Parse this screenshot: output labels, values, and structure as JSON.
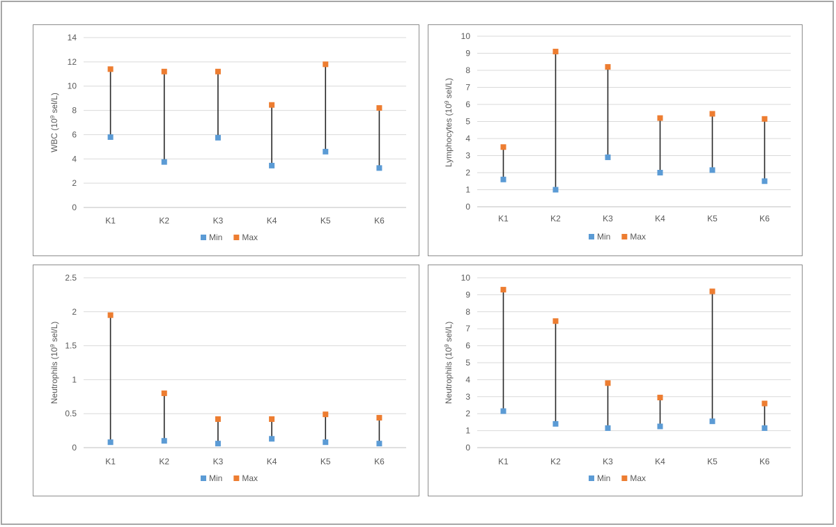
{
  "chart_data": [
    {
      "type": "scatter",
      "subtype": "min-max range",
      "ylabel": "WBC (10⁹ sel/L)",
      "ylim": [
        0,
        14
      ],
      "yticks": [
        0,
        2,
        4,
        6,
        8,
        10,
        12,
        14
      ],
      "categories": [
        "K1",
        "K2",
        "K3",
        "K4",
        "K5",
        "K6"
      ],
      "series": [
        {
          "name": "Min",
          "color": "#5b9bd5",
          "values": [
            5.8,
            3.75,
            5.75,
            3.45,
            4.6,
            3.25
          ]
        },
        {
          "name": "Max",
          "color": "#ed7d31",
          "values": [
            11.4,
            11.2,
            11.2,
            8.45,
            11.8,
            8.2
          ]
        }
      ],
      "legend": "bottom",
      "grid": true
    },
    {
      "type": "scatter",
      "subtype": "min-max range",
      "ylabel": "Lymphocytes (10⁹ sel/L)",
      "ylim": [
        0,
        10
      ],
      "yticks": [
        0,
        1,
        2,
        3,
        4,
        5,
        6,
        7,
        8,
        9,
        10
      ],
      "categories": [
        "K1",
        "K2",
        "K3",
        "K4",
        "K5",
        "K6"
      ],
      "series": [
        {
          "name": "Min",
          "color": "#5b9bd5",
          "values": [
            1.6,
            1.0,
            2.9,
            2.0,
            2.15,
            1.5
          ]
        },
        {
          "name": "Max",
          "color": "#ed7d31",
          "values": [
            3.5,
            9.1,
            8.2,
            5.2,
            5.45,
            5.15
          ]
        }
      ],
      "legend": "bottom",
      "grid": true
    },
    {
      "type": "scatter",
      "subtype": "min-max range",
      "ylabel": "Neutrophils (10⁹ sel/L)",
      "ylim": [
        0,
        2.5
      ],
      "yticks": [
        0,
        0.5,
        1,
        1.5,
        2,
        2.5
      ],
      "categories": [
        "K1",
        "K2",
        "K3",
        "K4",
        "K5",
        "K6"
      ],
      "series": [
        {
          "name": "Min",
          "color": "#5b9bd5",
          "values": [
            0.08,
            0.1,
            0.06,
            0.13,
            0.08,
            0.06
          ]
        },
        {
          "name": "Max",
          "color": "#ed7d31",
          "values": [
            1.95,
            0.8,
            0.42,
            0.42,
            0.49,
            0.44
          ]
        }
      ],
      "legend": "bottom",
      "grid": true
    },
    {
      "type": "scatter",
      "subtype": "min-max range",
      "ylabel": "Neutrophils (10⁹ sel/L)",
      "ylim": [
        0,
        10
      ],
      "yticks": [
        0,
        1,
        2,
        3,
        4,
        5,
        6,
        7,
        8,
        9,
        10
      ],
      "categories": [
        "K1",
        "K2",
        "K3",
        "K4",
        "K5",
        "K6"
      ],
      "series": [
        {
          "name": "Min",
          "color": "#5b9bd5",
          "values": [
            2.15,
            1.4,
            1.15,
            1.25,
            1.55,
            1.15
          ]
        },
        {
          "name": "Max",
          "color": "#ed7d31",
          "values": [
            9.3,
            7.45,
            3.8,
            2.95,
            9.2,
            2.6
          ]
        }
      ],
      "legend": "bottom",
      "grid": true
    }
  ]
}
